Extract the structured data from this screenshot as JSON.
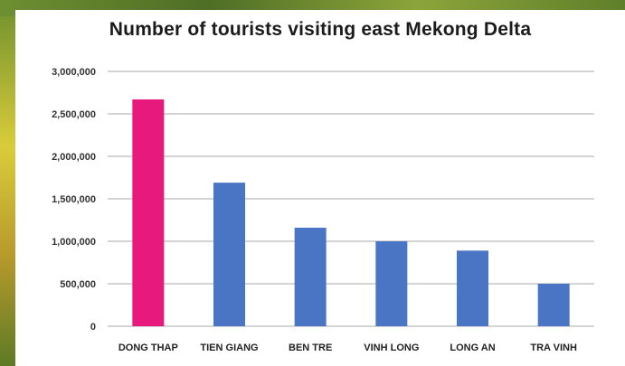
{
  "chart_data": {
    "type": "bar",
    "title": "Number of tourists visiting east Mekong Delta",
    "categories": [
      "DONG THAP",
      "TIEN GIANG",
      "BEN TRE",
      "VINH LONG",
      "LONG AN",
      "TRA VINH"
    ],
    "values": [
      2670000,
      1690000,
      1160000,
      1000000,
      890000,
      500000
    ],
    "bar_colors": [
      "#e8197d",
      "#4a74c4",
      "#4a74c4",
      "#4a74c4",
      "#4a74c4",
      "#4a74c4"
    ],
    "ylim": [
      0,
      3000000
    ],
    "yticks": [
      0,
      500000,
      1000000,
      1500000,
      2000000,
      2500000,
      3000000
    ],
    "ytick_labels": [
      "0",
      "500,000",
      "1,000,000",
      "1,500,000",
      "2,000,000",
      "2,500,000",
      "3,000,000"
    ],
    "grid": true,
    "xlabel": "",
    "ylabel": ""
  }
}
